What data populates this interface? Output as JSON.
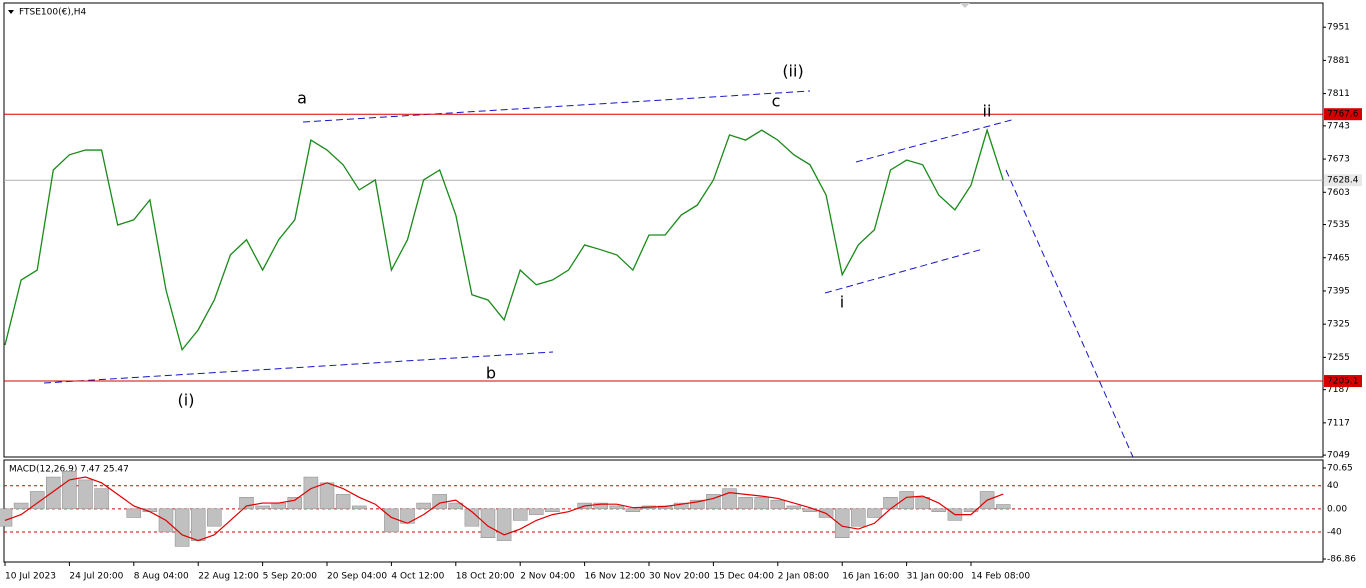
{
  "chart_data": [
    {
      "type": "line",
      "title": "FTSE100(€),H4",
      "categories": [
        "10 Jul 2023",
        null,
        null,
        null,
        "24 Jul 20:00",
        null,
        null,
        null,
        "8 Aug 04:00",
        null,
        null,
        null,
        "22 Aug 12:00",
        null,
        null,
        null,
        "5 Sep 20:00",
        null,
        null,
        null,
        "20 Sep 04:00",
        null,
        null,
        null,
        "4 Oct 12:00",
        null,
        null,
        null,
        "18 Oct 20:00",
        null,
        null,
        null,
        "2 Nov 04:00",
        null,
        null,
        null,
        "16 Nov 12:00",
        null,
        null,
        null,
        "30 Nov 20:00",
        null,
        null,
        null,
        "15 Dec 04:00",
        null,
        null,
        null,
        "2 Jan 08:00",
        null,
        null,
        null,
        "16 Jan 16:00",
        null,
        null,
        null,
        "31 Jan 00:00",
        null,
        null,
        null,
        "14 Feb 08:00",
        null,
        null
      ],
      "values": [
        7281,
        7418,
        7439,
        7650,
        7682,
        7692,
        7692,
        7534,
        7545,
        7587,
        7397,
        7271,
        7313,
        7376,
        7471,
        7503,
        7439,
        7503,
        7545,
        7713,
        7692,
        7661,
        7608,
        7629,
        7439,
        7503,
        7629,
        7650,
        7555,
        7387,
        7376,
        7334,
        7439,
        7408,
        7418,
        7439,
        7492,
        7482,
        7471,
        7439,
        7513,
        7513,
        7555,
        7576,
        7629,
        7724,
        7713,
        7734,
        7713,
        7682,
        7661,
        7597,
        7429,
        7492,
        7524,
        7650,
        7671,
        7661,
        7597,
        7566,
        7618,
        7734,
        7628.4
      ],
      "color": "#1a8a1a",
      "ylim": [
        7045,
        8002
      ],
      "yticks": [
        7951,
        7881,
        7811,
        7743,
        7673,
        7603,
        7535,
        7465,
        7395,
        7325,
        7255,
        7187,
        7117,
        7049
      ],
      "levels": [
        7767.6,
        7205.1
      ],
      "level_color": "#d40000",
      "current_price": 7628.4,
      "annotations": [
        {
          "text": "(ii)",
          "color": "#1515c8"
        },
        {
          "text": "a",
          "color": "#e020e0"
        },
        {
          "text": "c",
          "color": "#e020e0"
        },
        {
          "text": "ii",
          "color": "#e020e0"
        },
        {
          "text": "i",
          "color": "#e020e0"
        },
        {
          "text": "b",
          "color": "#e020e0"
        },
        {
          "text": "(i)",
          "color": "#1515c8"
        }
      ]
    },
    {
      "type": "bar",
      "title": "MACD(12,26,9) 7.47 25.47",
      "values": [
        -30,
        10,
        30,
        55,
        65,
        50,
        35,
        0,
        -15,
        -5,
        -40,
        -65,
        -55,
        -30,
        0,
        20,
        5,
        10,
        20,
        55,
        45,
        25,
        5,
        0,
        -40,
        -25,
        10,
        25,
        10,
        -30,
        -50,
        -55,
        -20,
        -10,
        -5,
        0,
        10,
        10,
        5,
        -5,
        5,
        5,
        10,
        15,
        25,
        35,
        20,
        20,
        15,
        5,
        -5,
        -15,
        -50,
        -30,
        -15,
        20,
        30,
        20,
        -5,
        -20,
        -5,
        30,
        7.47
      ],
      "signal": [
        -20,
        -10,
        10,
        30,
        50,
        55,
        45,
        25,
        5,
        -5,
        -20,
        -45,
        -55,
        -45,
        -20,
        5,
        10,
        10,
        15,
        35,
        45,
        35,
        20,
        8,
        -15,
        -25,
        -10,
        10,
        15,
        -5,
        -30,
        -45,
        -35,
        -20,
        -10,
        -5,
        5,
        8,
        8,
        2,
        3,
        4,
        8,
        12,
        18,
        28,
        25,
        22,
        18,
        10,
        2,
        -8,
        -30,
        -35,
        -25,
        0,
        20,
        22,
        10,
        -10,
        -10,
        15,
        25.47
      ],
      "color": "#c0c0c0",
      "signal_color": "#e00000",
      "ylim": [
        -92,
        84.5
      ],
      "yticks": [
        70.65,
        40,
        {
          "value": 0,
          "label": "0.00"
        },
        -40,
        -86.86
      ]
    }
  ]
}
